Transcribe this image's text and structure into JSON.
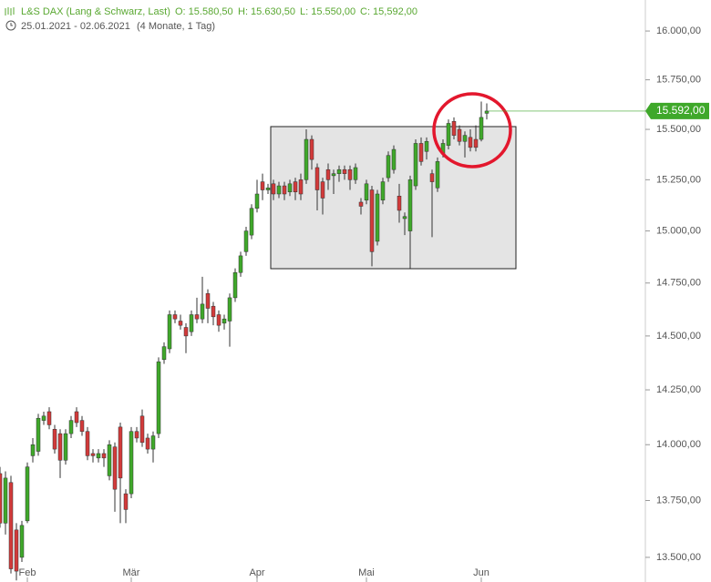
{
  "header": {
    "title": "L&S DAX (Lang & Schwarz, Last)",
    "open": "O: 15.580,50",
    "high": "H: 15.630,50",
    "low": "L: 15.550,00",
    "close": "C: 15,592,00",
    "range": "25.01.2021 - 02.06.2021",
    "span": "(4 Monate, 1 Tag)"
  },
  "chart_data": {
    "type": "candlestick",
    "log_scale": true,
    "up_color": "#3fa82a",
    "down_color": "#d23a3a",
    "last_price": 15592,
    "last_price_label": "15.592,00",
    "ylim": [
      13393,
      16161
    ],
    "yticks": [
      {
        "value": 16000,
        "label": "16.000,00"
      },
      {
        "value": 15750,
        "label": "15.750,00"
      },
      {
        "value": 15500,
        "label": "15.500,00"
      },
      {
        "value": 15250,
        "label": "15.250,00"
      },
      {
        "value": 15000,
        "label": "15.000,00"
      },
      {
        "value": 14750,
        "label": "14.750,00"
      },
      {
        "value": 14500,
        "label": "14.500,00"
      },
      {
        "value": 14250,
        "label": "14.250,00"
      },
      {
        "value": 14000,
        "label": "14.000,00"
      },
      {
        "value": 13750,
        "label": "13.750,00"
      },
      {
        "value": 13500,
        "label": "13.500,00"
      }
    ],
    "categories": [
      null,
      null,
      null,
      null,
      null,
      "Feb",
      null,
      null,
      null,
      null,
      null,
      null,
      null,
      null,
      null,
      null,
      null,
      null,
      null,
      null,
      null,
      null,
      null,
      null,
      "Mär",
      null,
      null,
      null,
      null,
      null,
      null,
      null,
      null,
      null,
      null,
      null,
      null,
      null,
      null,
      null,
      null,
      null,
      null,
      null,
      null,
      null,
      null,
      "Apr",
      null,
      null,
      null,
      null,
      null,
      null,
      null,
      null,
      null,
      null,
      null,
      null,
      null,
      null,
      null,
      null,
      null,
      null,
      null,
      "Mai",
      null,
      null,
      null,
      null,
      null,
      null,
      null,
      null,
      null,
      null,
      null,
      null,
      null,
      null,
      null,
      null,
      null,
      null,
      null,
      null,
      "Jun",
      null
    ],
    "open": [
      13870,
      13650,
      13830,
      13620,
      13500,
      13660,
      13950,
      13970,
      14110,
      14150,
      14070,
      14050,
      13930,
      14050,
      14150,
      14110,
      14060,
      13960,
      13940,
      13960,
      13860,
      13990,
      14080,
      13780,
      13780,
      14060,
      14130,
      14030,
      13980,
      14050,
      14390,
      14440,
      14600,
      14570,
      14540,
      14520,
      14600,
      14580,
      14700,
      14640,
      14600,
      14560,
      14570,
      14680,
      14800,
      14900,
      14980,
      15110,
      15240,
      15200,
      15230,
      15180,
      15220,
      15190,
      15240,
      15250,
      15250,
      15450,
      15310,
      15240,
      15300,
      15270,
      15280,
      15300,
      15300,
      15250,
      15140,
      15150,
      15200,
      14950,
      15150,
      15260,
      15300,
      15170,
      15060,
      15000,
      15220,
      15430,
      15390,
      15280,
      15210,
      15380,
      15420,
      15540,
      15500,
      15440,
      15460,
      15450,
      15450,
      15580.5
    ],
    "high": [
      13900,
      13880,
      13860,
      13650,
      13660,
      13920,
      14030,
      14140,
      14150,
      14170,
      14090,
      14070,
      14070,
      14130,
      14170,
      14130,
      14080,
      13980,
      13980,
      13980,
      14020,
      14010,
      14100,
      13800,
      14080,
      14080,
      14160,
      14050,
      14060,
      14400,
      14470,
      14620,
      14620,
      14600,
      14560,
      14620,
      14680,
      14780,
      14720,
      14660,
      14620,
      14600,
      14700,
      14820,
      14900,
      15020,
      15130,
      15250,
      15280,
      15230,
      15250,
      15240,
      15240,
      15250,
      15260,
      15280,
      15500,
      15470,
      15330,
      15260,
      15330,
      15300,
      15320,
      15320,
      15320,
      15330,
      15160,
      15250,
      15220,
      15200,
      15260,
      15390,
      15420,
      15230,
      15090,
      15270,
      15450,
      15460,
      15460,
      15300,
      15360,
      15450,
      15550,
      15560,
      15520,
      15490,
      15500,
      15520,
      15640,
      15630.5
    ],
    "low": [
      13630,
      13600,
      13430,
      13400,
      13480,
      13650,
      13920,
      13950,
      14090,
      14070,
      13960,
      13850,
      13910,
      14030,
      14080,
      14040,
      13930,
      13920,
      13920,
      13900,
      13840,
      13700,
      13650,
      13650,
      13760,
      14010,
      13990,
      13960,
      13920,
      14030,
      14370,
      14420,
      14560,
      14530,
      14420,
      14500,
      14560,
      14560,
      14560,
      14550,
      14520,
      14530,
      14450,
      14660,
      14780,
      14880,
      14960,
      15090,
      15150,
      15180,
      15150,
      15160,
      15150,
      15170,
      15150,
      15150,
      15230,
      15300,
      15100,
      15080,
      15200,
      15180,
      15240,
      15250,
      15200,
      15230,
      15080,
      15130,
      14830,
      14930,
      15130,
      15240,
      15280,
      15040,
      14980,
      14820,
      15200,
      15320,
      15350,
      14970,
      15190,
      15360,
      15400,
      15450,
      15420,
      15360,
      15390,
      15390,
      15440,
      15550
    ],
    "close": [
      13650,
      13850,
      13450,
      13440,
      13640,
      13900,
      14000,
      14120,
      14130,
      14090,
      13980,
      13930,
      14050,
      14110,
      14100,
      14060,
      13950,
      13950,
      13960,
      13940,
      14000,
      13800,
      13850,
      13710,
      14060,
      14030,
      14010,
      13980,
      14040,
      14380,
      14450,
      14600,
      14580,
      14550,
      14500,
      14600,
      14580,
      14650,
      14630,
      14590,
      14550,
      14580,
      14680,
      14800,
      14880,
      15000,
      15110,
      15180,
      15200,
      15210,
      15180,
      15220,
      15180,
      15230,
      15190,
      15180,
      15450,
      15350,
      15200,
      15160,
      15250,
      15280,
      15300,
      15280,
      15250,
      15310,
      15120,
      15230,
      14900,
      15180,
      15240,
      15370,
      15400,
      15100,
      15070,
      15250,
      15430,
      15340,
      15440,
      15240,
      15340,
      15430,
      15530,
      15470,
      15440,
      15470,
      15410,
      15410,
      15560,
      15592
    ]
  }
}
